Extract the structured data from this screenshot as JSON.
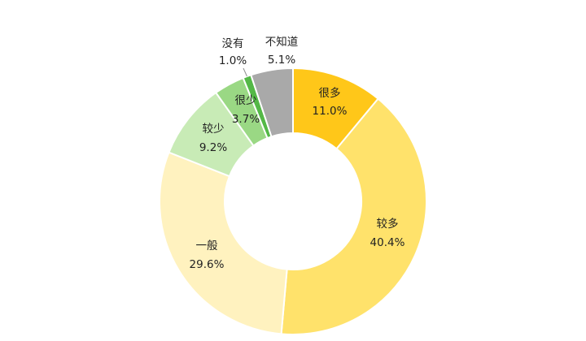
{
  "chart_data": {
    "type": "pie",
    "variant": "donut",
    "start_angle_deg": 0,
    "direction": "clockwise",
    "slices": [
      {
        "name": "很多",
        "value": 11.0,
        "label": "11.0%",
        "color": "#FFC719"
      },
      {
        "name": "较多",
        "value": 40.4,
        "label": "40.4%",
        "color": "#FFE26B"
      },
      {
        "name": "一般",
        "value": 29.6,
        "label": "29.6%",
        "color": "#FFF2BF"
      },
      {
        "name": "较少",
        "value": 9.2,
        "label": "9.2%",
        "color": "#C8EBB6"
      },
      {
        "name": "很少",
        "value": 3.7,
        "label": "3.7%",
        "color": "#9AD884"
      },
      {
        "name": "没有",
        "value": 1.0,
        "label": "1.0%",
        "color": "#54B847"
      },
      {
        "name": "不知道",
        "value": 5.1,
        "label": "5.1%",
        "color": "#A9A9A9"
      }
    ],
    "legend": "none",
    "title": ""
  }
}
